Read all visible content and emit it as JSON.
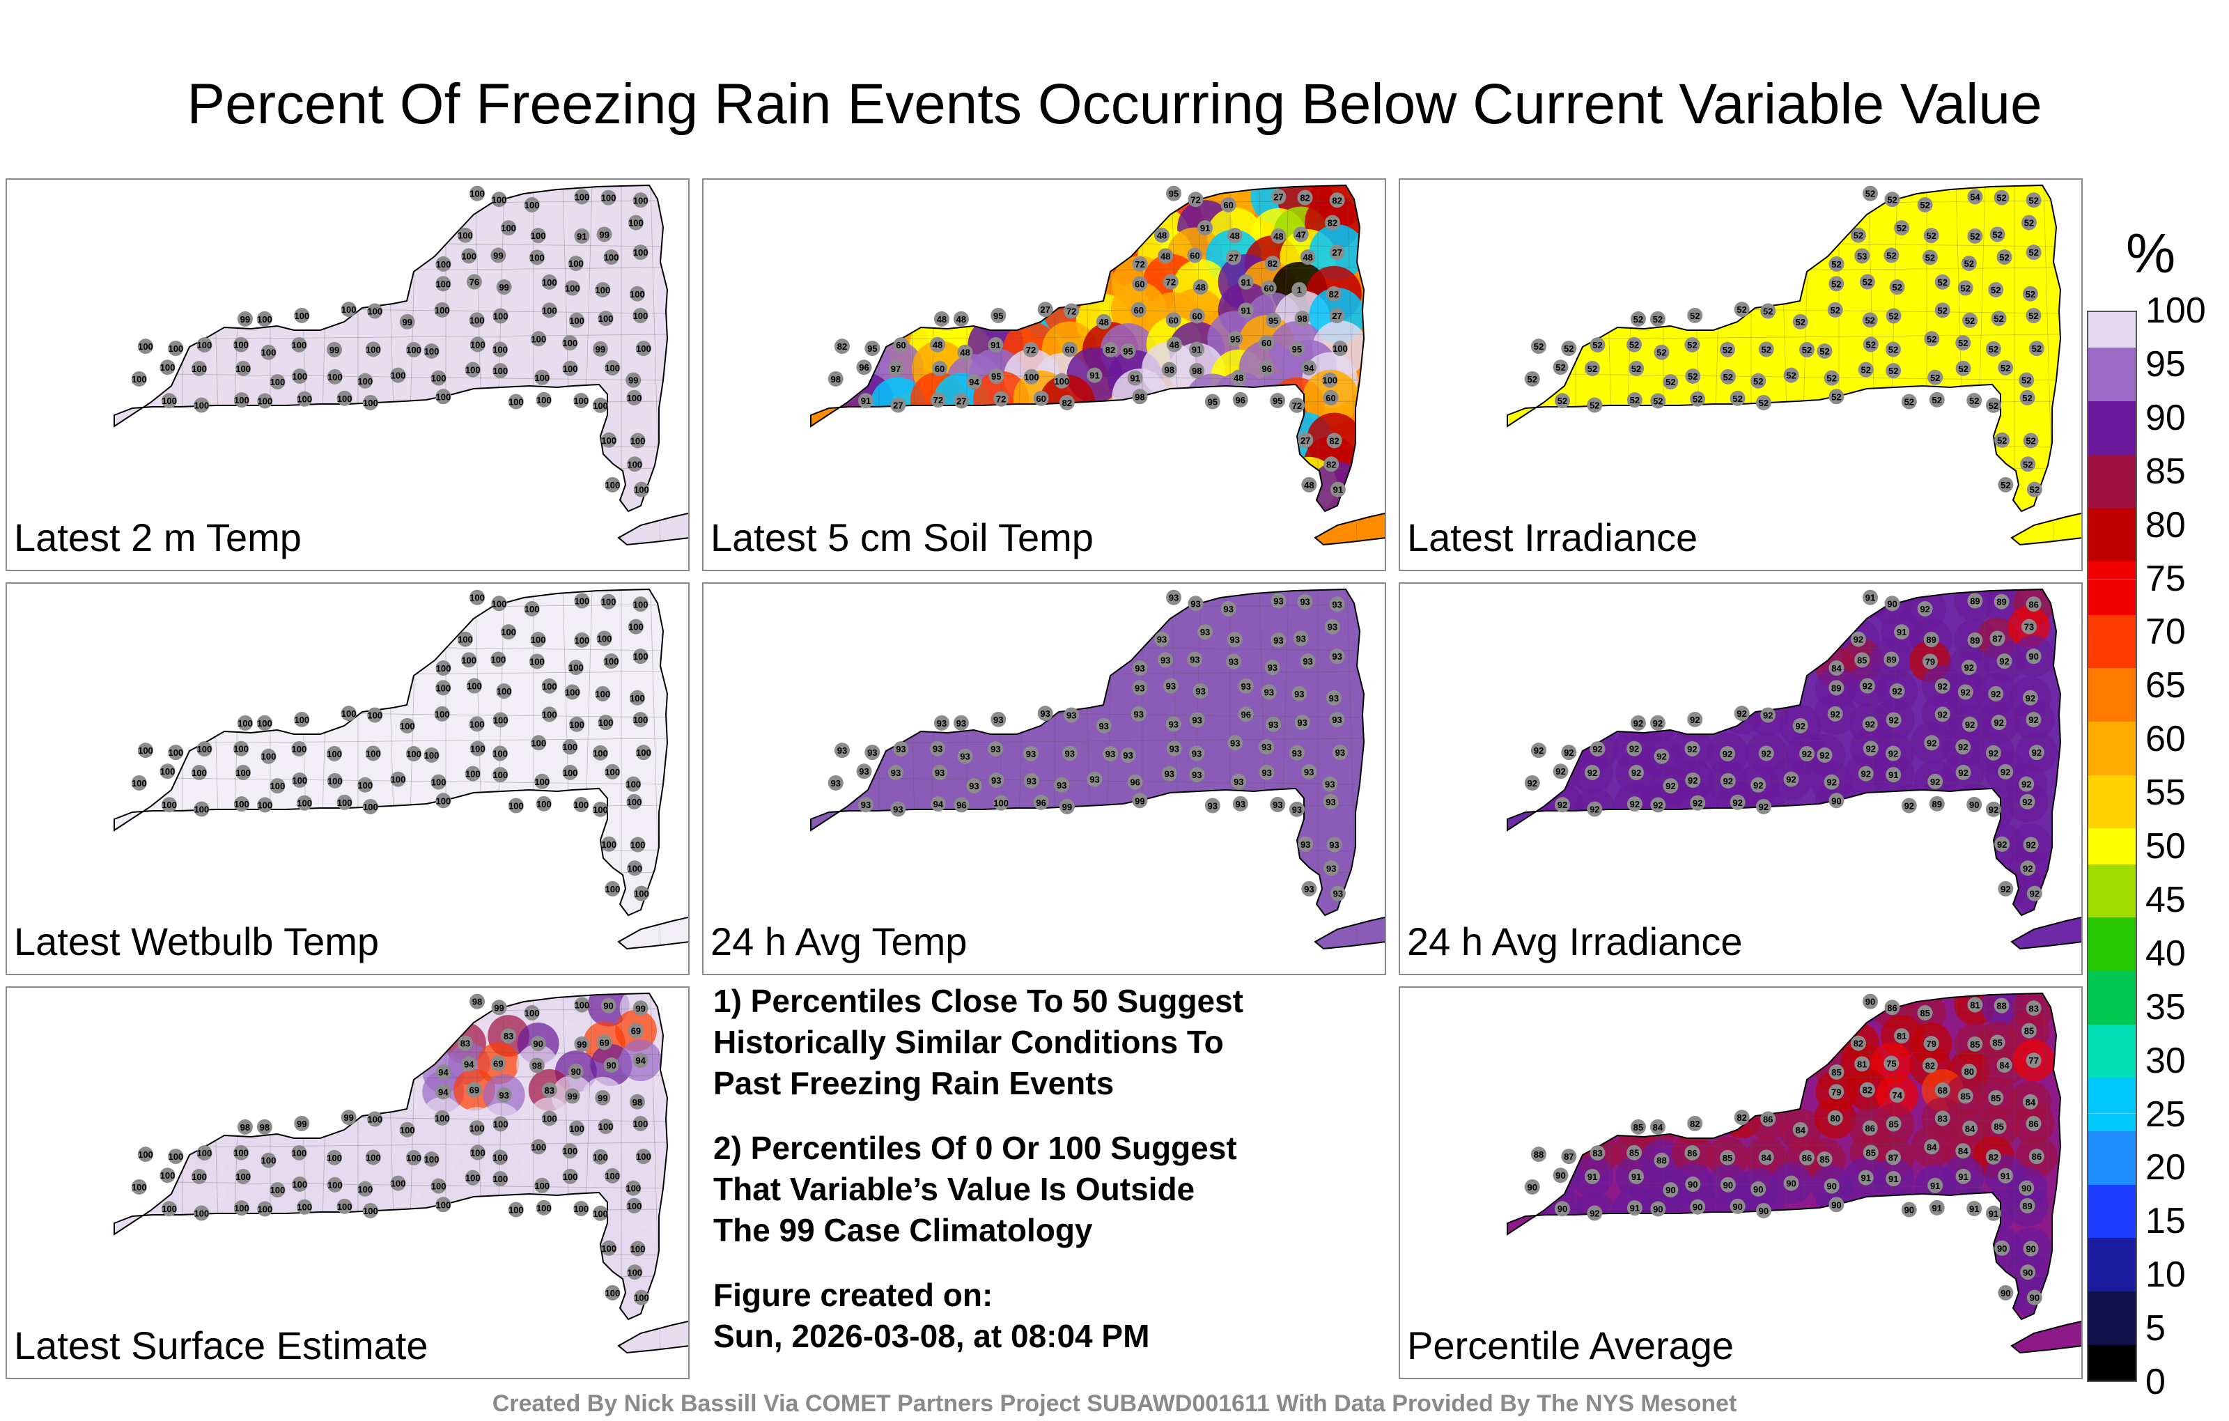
{
  "title": "Percent Of Freezing Rain Events Occurring Below Current Variable Value",
  "panels": [
    {
      "id": "2m-temp",
      "label": "Latest 2 m Temp",
      "scheme": "uniform",
      "bg": "#e8dcef",
      "values": [
        100,
        100,
        100,
        100,
        100,
        100,
        100,
        100,
        100,
        91,
        99,
        100,
        100,
        100,
        99,
        100,
        100,
        100,
        100,
        100,
        76,
        99,
        100,
        100,
        100,
        100,
        99,
        100,
        100,
        100,
        100,
        99,
        100,
        100,
        100,
        100,
        100,
        100,
        100,
        100,
        100,
        100,
        100,
        100,
        100,
        99,
        100,
        100,
        100,
        100,
        100,
        100,
        100,
        99,
        100,
        100,
        100,
        100,
        100,
        100,
        100,
        100,
        100,
        100,
        100,
        100,
        100,
        100,
        100,
        100,
        99,
        100,
        100,
        100,
        100,
        100,
        100,
        100,
        100,
        100,
        100,
        100,
        100,
        100,
        100,
        100,
        100,
        100,
        100,
        100,
        100,
        100
      ]
    },
    {
      "id": "5cm-soil",
      "label": "Latest 5 cm Soil Temp",
      "scheme": "soil",
      "bg": "#ff8c00",
      "values": [
        95,
        72,
        60,
        27,
        82,
        82,
        48,
        91,
        48,
        48,
        47,
        82,
        72,
        48,
        60,
        27,
        82,
        48,
        27,
        60,
        72,
        48,
        91,
        60,
        1,
        82,
        48,
        48,
        95,
        27,
        72,
        48,
        60,
        60,
        60,
        91,
        95,
        98,
        27,
        82,
        95,
        60,
        48,
        48,
        91,
        72,
        60,
        82,
        95,
        48,
        91,
        95,
        60,
        95,
        100,
        98,
        96,
        97,
        60,
        94,
        95,
        100,
        100,
        91,
        91,
        98,
        98,
        48,
        96,
        94,
        100,
        91,
        27,
        72,
        27,
        72,
        60,
        82,
        98,
        95,
        96
      ]
    },
    {
      "id": "irradiance",
      "label": "Latest Irradiance",
      "scheme": "uniform",
      "bg": "#ffff00",
      "values": [
        52,
        52,
        52,
        54,
        52,
        52,
        52,
        52,
        52,
        52,
        52,
        52,
        52,
        53,
        52,
        52,
        52,
        52,
        52,
        52,
        52,
        52,
        52,
        52,
        52,
        52,
        52,
        52,
        52,
        52,
        52,
        52,
        52,
        52,
        52,
        52,
        52,
        52,
        52,
        52,
        52,
        52,
        52,
        52,
        52,
        52,
        52,
        52,
        52,
        52,
        52,
        52,
        52,
        52,
        52,
        52,
        52,
        52,
        52,
        52,
        52,
        52,
        52,
        52,
        52,
        52,
        52,
        52,
        52,
        52,
        52,
        52,
        52,
        52,
        52,
        52,
        52,
        52,
        52,
        52,
        52,
        52,
        52,
        52,
        52,
        52,
        52,
        52,
        52,
        52
      ]
    },
    {
      "id": "wetbulb",
      "label": "Latest Wetbulb Temp",
      "scheme": "uniform",
      "bg": "#f2eef6",
      "values": [
        100,
        100,
        100,
        100,
        100,
        100,
        100,
        100,
        100,
        100,
        100,
        100,
        100,
        100,
        100,
        100,
        100,
        100,
        100,
        100,
        100,
        100,
        100,
        100,
        100,
        100,
        100,
        100,
        100,
        100,
        100,
        100,
        100,
        100,
        100,
        100,
        100,
        100,
        100,
        100,
        100,
        100,
        100,
        100,
        100,
        100,
        100,
        100,
        100,
        100,
        100,
        100,
        100,
        100,
        100,
        100,
        100,
        100,
        100,
        100,
        100,
        100,
        100,
        100,
        100,
        100,
        100,
        100,
        100,
        100,
        100,
        100,
        100,
        100,
        100,
        100,
        100,
        100,
        100,
        100,
        100,
        100,
        100,
        100,
        100,
        100,
        100,
        100,
        100,
        100
      ]
    },
    {
      "id": "24h-temp",
      "label": "24 h Avg Temp",
      "scheme": "uniform",
      "bg": "#8a5cb8",
      "values": [
        93,
        93,
        93,
        93,
        93,
        93,
        93,
        93,
        93,
        93,
        93,
        93,
        93,
        93,
        93,
        93,
        93,
        93,
        93,
        93,
        93,
        93,
        93,
        93,
        93,
        93,
        93,
        93,
        93,
        93,
        93,
        93,
        93,
        93,
        93,
        96,
        93,
        93,
        93,
        93,
        93,
        93,
        93,
        93,
        93,
        93,
        93,
        93,
        93,
        93,
        93,
        93,
        93,
        93,
        93,
        93,
        93,
        93,
        93,
        93,
        93,
        93,
        93,
        93,
        96,
        93,
        93,
        93,
        93,
        93,
        93,
        93,
        93,
        94,
        96,
        100,
        96,
        99,
        99,
        93,
        93,
        93,
        93,
        93,
        93,
        93,
        93,
        93,
        93,
        93
      ]
    },
    {
      "id": "24h-irr",
      "label": "24 h Avg Irradiance",
      "scheme": "irr24",
      "bg": "#6e2aa6",
      "values": [
        91,
        90,
        92,
        89,
        89,
        86,
        92,
        91,
        89,
        89,
        87,
        73,
        84,
        85,
        89,
        79,
        92,
        92,
        90,
        89,
        92,
        92,
        92,
        92,
        92,
        92,
        92,
        92,
        92,
        92,
        92,
        92,
        92,
        92,
        92,
        92,
        92,
        92,
        92,
        92,
        92,
        92,
        92,
        92,
        92,
        92,
        92,
        92,
        92,
        92,
        92,
        92,
        92,
        92,
        92,
        92,
        92,
        92,
        92,
        92,
        92,
        92,
        92,
        92,
        92,
        92,
        91,
        92,
        92,
        92,
        92,
        92,
        92,
        92,
        92,
        92,
        92,
        92,
        90,
        92,
        89,
        90,
        92,
        92,
        92,
        92,
        92,
        92,
        92,
        92
      ]
    },
    {
      "id": "surface",
      "label": "Latest Surface Estimate",
      "scheme": "surface",
      "bg": "#e8dcef",
      "values": [
        98,
        99,
        100,
        100,
        90,
        99,
        83,
        83,
        90,
        99,
        69,
        69,
        94,
        94,
        69,
        98,
        90,
        90,
        94,
        94,
        69,
        93,
        83,
        99,
        99,
        98,
        98,
        98,
        99,
        99,
        100,
        100,
        100,
        100,
        100,
        100,
        100,
        100,
        100,
        100,
        100,
        100,
        100,
        100,
        100,
        100,
        100,
        100,
        100,
        100,
        100,
        100,
        100,
        100,
        100,
        100,
        100,
        100,
        100,
        100,
        100,
        100,
        100,
        100,
        100,
        100,
        100,
        100,
        100,
        100,
        100,
        100,
        100,
        100,
        100,
        100,
        100,
        100,
        100,
        100,
        100,
        100,
        100,
        100,
        100,
        100,
        100,
        100,
        100,
        100
      ]
    },
    {
      "id": "average",
      "label": "Percentile Average",
      "scheme": "average",
      "bg": "#8e1a8a",
      "values": [
        90,
        86,
        85,
        81,
        88,
        83,
        82,
        81,
        79,
        85,
        85,
        85,
        85,
        81,
        75,
        82,
        80,
        84,
        77,
        79,
        82,
        74,
        68,
        85,
        85,
        84,
        85,
        84,
        82,
        82,
        86,
        84,
        80,
        86,
        85,
        83,
        84,
        85,
        86,
        88,
        87,
        83,
        85,
        88,
        86,
        85,
        84,
        86,
        85,
        85,
        87,
        84,
        84,
        82,
        86,
        90,
        90,
        91,
        91,
        90,
        90,
        90,
        90,
        90,
        90,
        91,
        91,
        91,
        91,
        91,
        90,
        90,
        92,
        91,
        90,
        90,
        90,
        90,
        90,
        90,
        91,
        91,
        91,
        89,
        90,
        90,
        90,
        90,
        90,
        90
      ]
    }
  ],
  "notes": {
    "p1": [
      "1) Percentiles Close To 50 Suggest",
      "Historically Similar Conditions To",
      "Past Freezing Rain Events"
    ],
    "p2": [
      "2) Percentiles Of 0 Or 100 Suggest",
      "That Variable’s Value Is Outside",
      "The 99 Case Climatology"
    ],
    "p3": [
      "Figure created on:",
      "Sun, 2026-03-08, at 08:04 PM"
    ]
  },
  "colorbar": {
    "unit": "%",
    "ticks": [
      "0",
      "5",
      "10",
      "15",
      "20",
      "25",
      "30",
      "35",
      "40",
      "45",
      "50",
      "55",
      "60",
      "65",
      "70",
      "75",
      "80",
      "85",
      "90",
      "95",
      "100"
    ],
    "colors": [
      "#000000",
      "#10104a",
      "#1a1a9e",
      "#1e3cff",
      "#1e8cff",
      "#00c8ff",
      "#00e0b4",
      "#00c850",
      "#28c800",
      "#a0dc00",
      "#ffff00",
      "#ffd200",
      "#ffaa00",
      "#ff7a00",
      "#ff3c00",
      "#f00000",
      "#c00000",
      "#a01040",
      "#6a1a9a",
      "#9a6ac6",
      "#e4d8ee"
    ]
  },
  "footer": "Created By Nick Bassill Via COMET Partners Project SUBAWD001611 With Data Provided By The NYS Mesonet"
}
